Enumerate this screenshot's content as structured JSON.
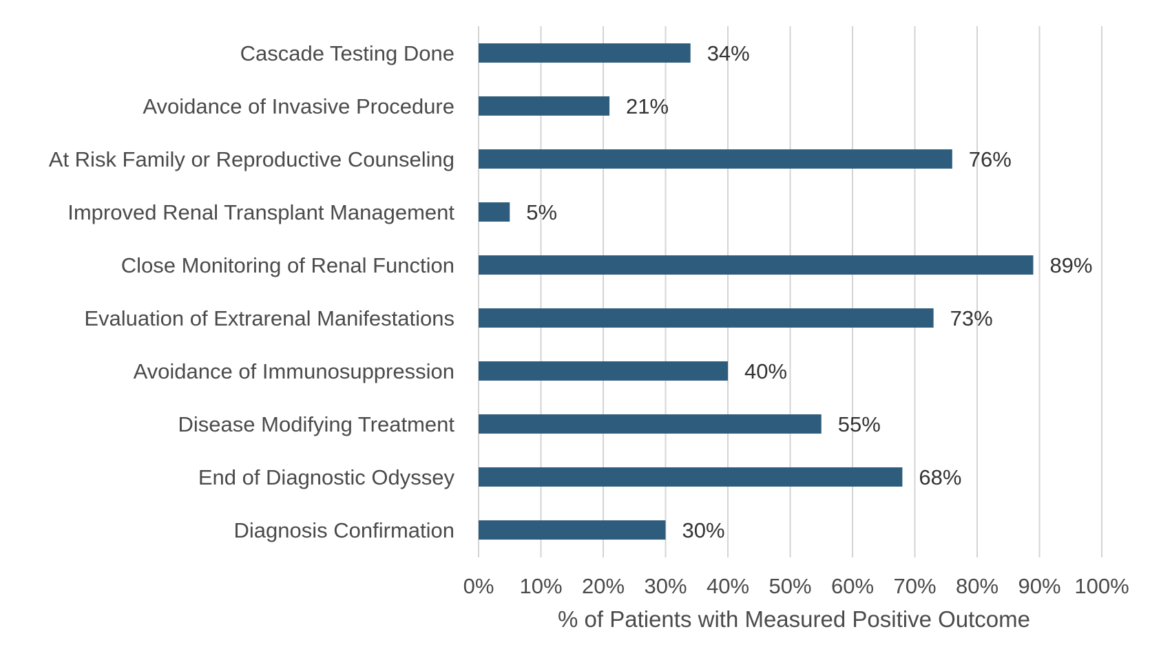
{
  "chart_data": {
    "type": "bar",
    "orientation": "horizontal",
    "categories": [
      "Cascade Testing Done",
      "Avoidance of Invasive Procedure",
      "At Risk Family or Reproductive Counseling",
      "Improved Renal Transplant Management",
      "Close Monitoring of Renal Function",
      "Evaluation of Extrarenal Manifestations",
      "Avoidance of Immunosuppression",
      "Disease Modifying Treatment",
      "End of Diagnostic Odyssey",
      "Diagnosis Confirmation"
    ],
    "values": [
      34,
      21,
      76,
      5,
      89,
      73,
      40,
      55,
      68,
      30
    ],
    "data_labels": [
      "34%",
      "21%",
      "76%",
      "5%",
      "89%",
      "73%",
      "40%",
      "55%",
      "68%",
      "30%"
    ],
    "xlabel": "% of Patients with Measured Positive Outcome",
    "ylabel": "",
    "xlim": [
      0,
      100
    ],
    "xticks": [
      0,
      10,
      20,
      30,
      40,
      50,
      60,
      70,
      80,
      90,
      100
    ],
    "xtick_labels": [
      "0%",
      "10%",
      "20%",
      "30%",
      "40%",
      "50%",
      "60%",
      "70%",
      "80%",
      "90%",
      "100%"
    ],
    "grid": "vertical",
    "legend": "none",
    "bar_color": "#2e5c7d"
  }
}
